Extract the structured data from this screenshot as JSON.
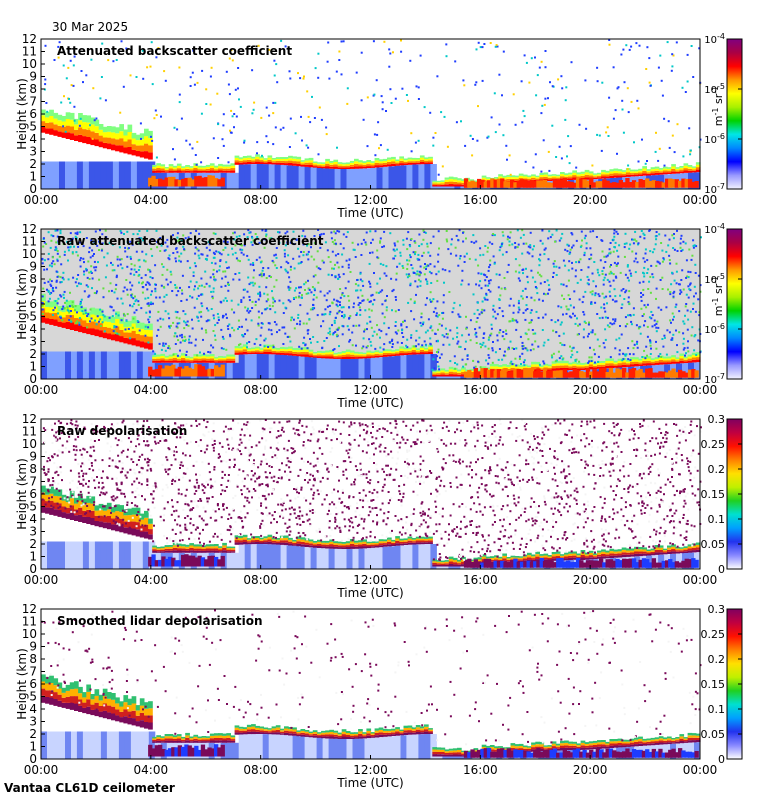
{
  "date_label": "30 Mar 2025",
  "footer_label": "Vantaa CL61D ceilometer",
  "colors": {
    "high_cloud": "#ff1e00",
    "ground_blue": "#3b56e8",
    "depol_purple": "#7a0a5a",
    "plot_bg": "#d7d7d7"
  },
  "time_axis": {
    "label": "Time (UTC)",
    "ticks": [
      "00:00",
      "04:00",
      "08:00",
      "12:00",
      "16:00",
      "20:00",
      "00:00"
    ]
  },
  "height_axis": {
    "label": "Height (km)",
    "ticks": [
      "0",
      "1",
      "2",
      "3",
      "4",
      "5",
      "6",
      "7",
      "8",
      "9",
      "10",
      "11",
      "12"
    ]
  },
  "chart_data": [
    {
      "type": "heatmap",
      "title": "Attenuated backscatter coefficient",
      "xlabel": "Time (UTC)",
      "ylabel": "Height (km)",
      "xlim_hours": [
        0,
        24
      ],
      "ylim_km": [
        0,
        12
      ],
      "colorbar": {
        "scale": "log",
        "ticks": [
          "10-7",
          "10-6",
          "10-5",
          "10-4"
        ],
        "ticks_display": [
          {
            "base": "10",
            "exp": "-7"
          },
          {
            "base": "10",
            "exp": "-6"
          },
          {
            "base": "10",
            "exp": "-5"
          },
          {
            "base": "10",
            "exp": "-4"
          }
        ],
        "unit": "m-1 sr-1",
        "unit_display": {
          "a": "m",
          "ae": "-1",
          "b": "sr",
          "be": "-1"
        },
        "range": [
          1e-07,
          0.0001
        ]
      }
    },
    {
      "type": "heatmap",
      "title": "Raw attenuated backscatter coefficient",
      "xlabel": "Time (UTC)",
      "ylabel": "Height (km)",
      "xlim_hours": [
        0,
        24
      ],
      "ylim_km": [
        0,
        12
      ],
      "colorbar": {
        "scale": "log",
        "ticks": [
          "10-7",
          "10-6",
          "10-5",
          "10-4"
        ],
        "ticks_display": [
          {
            "base": "10",
            "exp": "-7"
          },
          {
            "base": "10",
            "exp": "-6"
          },
          {
            "base": "10",
            "exp": "-5"
          },
          {
            "base": "10",
            "exp": "-4"
          }
        ],
        "unit": "m-1 sr-1",
        "unit_display": {
          "a": "m",
          "ae": "-1",
          "b": "sr",
          "be": "-1"
        },
        "range": [
          1e-07,
          0.0001
        ]
      }
    },
    {
      "type": "heatmap",
      "title": "Raw depolarisation",
      "xlabel": "Time (UTC)",
      "ylabel": "Height (km)",
      "xlim_hours": [
        0,
        24
      ],
      "ylim_km": [
        0,
        12
      ],
      "colorbar": {
        "scale": "linear",
        "ticks": [
          "0",
          "0.05",
          "0.1",
          "0.15",
          "0.2",
          "0.25",
          "0.3"
        ],
        "range": [
          0,
          0.3
        ]
      }
    },
    {
      "type": "heatmap",
      "title": "Smoothed lidar depolarisation",
      "xlabel": "Time (UTC)",
      "ylabel": "Height (km)",
      "xlim_hours": [
        0,
        24
      ],
      "ylim_km": [
        0,
        12
      ],
      "colorbar": {
        "scale": "linear",
        "ticks": [
          "0",
          "0.05",
          "0.1",
          "0.15",
          "0.2",
          "0.25",
          "0.3"
        ],
        "range": [
          0,
          0.3
        ]
      }
    }
  ]
}
